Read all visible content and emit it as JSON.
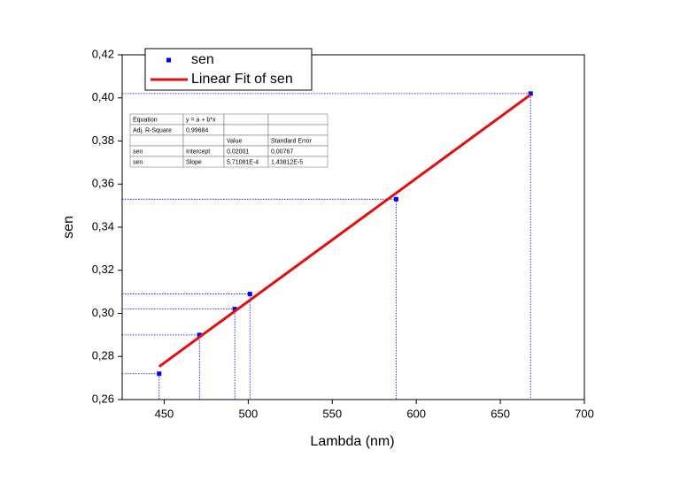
{
  "chart_data": {
    "type": "scatter",
    "xlabel": "Lambda (nm)",
    "ylabel": "sen",
    "xlim": [
      425,
      700
    ],
    "xticks": [
      450,
      500,
      550,
      600,
      650,
      700
    ],
    "ylim": [
      0.26,
      0.42
    ],
    "yticks": [
      {
        "value": 0.26,
        "label": "0,26"
      },
      {
        "value": 0.28,
        "label": "0,28"
      },
      {
        "value": 0.3,
        "label": "0,30"
      },
      {
        "value": 0.32,
        "label": "0,32"
      },
      {
        "value": 0.34,
        "label": "0,34"
      },
      {
        "value": 0.36,
        "label": "0,36"
      },
      {
        "value": 0.38,
        "label": "0,38"
      },
      {
        "value": 0.4,
        "label": "0,40"
      },
      {
        "value": 0.42,
        "label": "0,42"
      }
    ],
    "series": [
      {
        "name": "sen",
        "color": "#0000ff",
        "mode": "markers",
        "x": [
          447,
          471,
          492,
          501,
          588,
          668
        ],
        "values": [
          0.272,
          0.29,
          0.302,
          0.309,
          0.353,
          0.402
        ]
      },
      {
        "name": "Linear Fit of sen",
        "color": "#e01010",
        "mode": "line",
        "x": [
          447,
          668
        ],
        "values": [
          0.2753,
          0.4015
        ]
      }
    ],
    "fit_table": [
      [
        "Equation",
        "y = a + b*x",
        null,
        null
      ],
      [
        "Adj. R-Square",
        "0,99684",
        null,
        null
      ],
      [
        null,
        null,
        "Value",
        "Standard Error"
      ],
      [
        "sen",
        "Intercept",
        "0,02001",
        "0,00767"
      ],
      [
        "sen",
        "Slope",
        "5,71081E-4",
        "1,43812E-5"
      ]
    ]
  }
}
